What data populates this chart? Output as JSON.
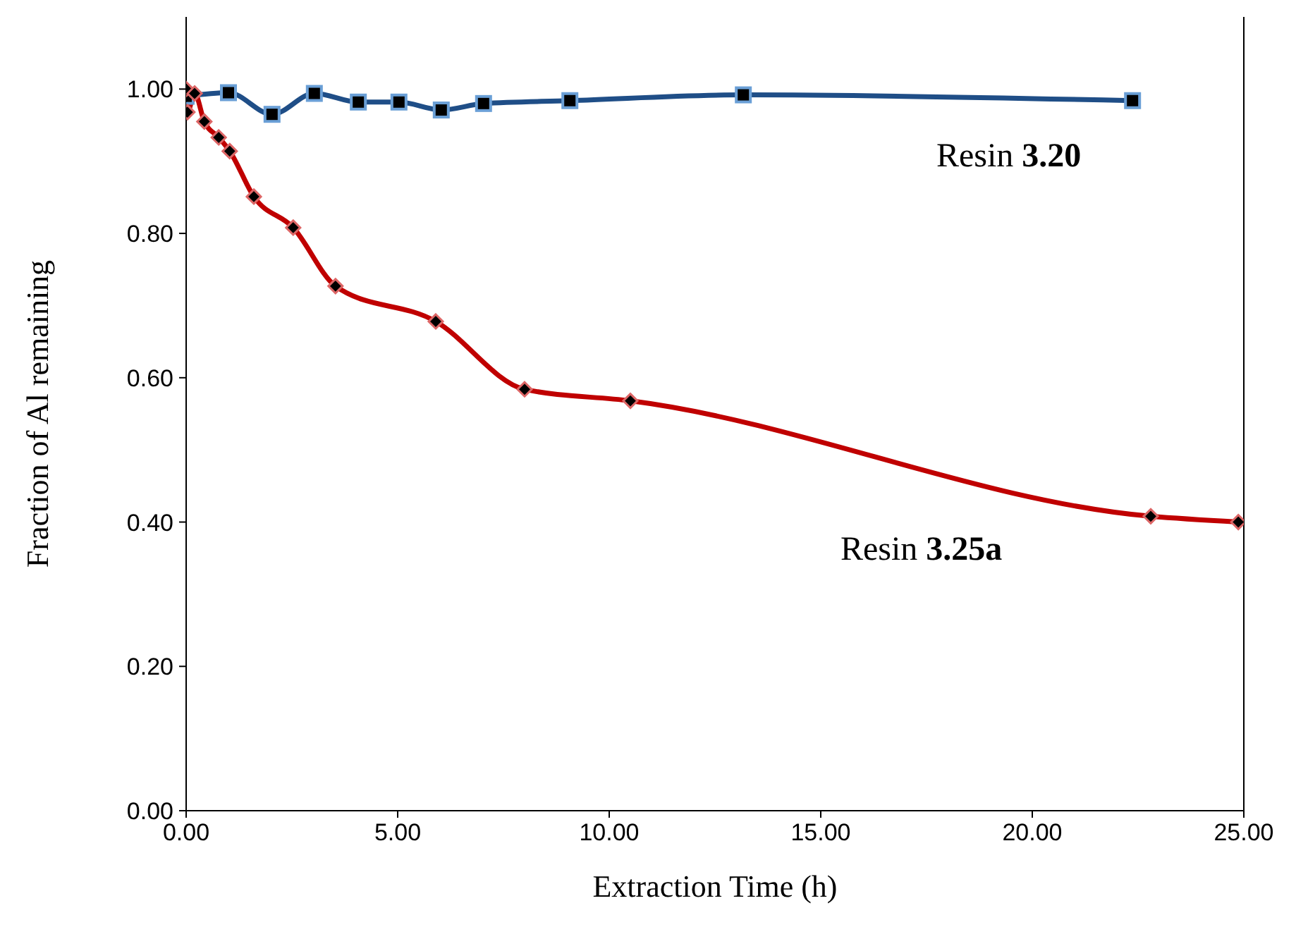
{
  "chart_data": {
    "type": "line",
    "xlabel": "Extraction Time (h)",
    "ylabel": "Fraction of Al remaining",
    "xlim": [
      0,
      25
    ],
    "ylim": [
      0,
      1.1
    ],
    "xticks": [
      {
        "value": 0,
        "label": "0.00"
      },
      {
        "value": 5,
        "label": "5.00"
      },
      {
        "value": 10,
        "label": "10.00"
      },
      {
        "value": 15,
        "label": "15.00"
      },
      {
        "value": 20,
        "label": "20.00"
      },
      {
        "value": 25,
        "label": "25.00"
      }
    ],
    "yticks": [
      {
        "value": 0,
        "label": "0.00"
      },
      {
        "value": 0.2,
        "label": "0.20"
      },
      {
        "value": 0.4,
        "label": "0.40"
      },
      {
        "value": 0.6,
        "label": "0.60"
      },
      {
        "value": 0.8,
        "label": "0.80"
      },
      {
        "value": 1,
        "label": "1.00"
      }
    ],
    "legend": false,
    "series": [
      {
        "name": "Resin 3.20",
        "color": "#1f4e87",
        "marker": "square",
        "x": [
          0,
          1,
          2.03,
          3.03,
          4.07,
          5.03,
          6.03,
          7.03,
          9.07,
          13.17,
          22.37
        ],
        "values": [
          0.99,
          0.995,
          0.965,
          0.994,
          0.982,
          0.982,
          0.971,
          0.98,
          0.984,
          0.992,
          0.984
        ]
      },
      {
        "name": "Resin 3.25a",
        "color": "#c00000",
        "marker": "diamond",
        "x": [
          0,
          0.03,
          0.2,
          0.43,
          0.77,
          1.03,
          1.6,
          2.53,
          3.53,
          5.9,
          8,
          10.5,
          22.8,
          24.87
        ],
        "values": [
          1,
          0.968,
          0.994,
          0.955,
          0.933,
          0.914,
          0.851,
          0.808,
          0.727,
          0.678,
          0.584,
          0.568,
          0.408,
          0.4
        ]
      }
    ]
  }
}
